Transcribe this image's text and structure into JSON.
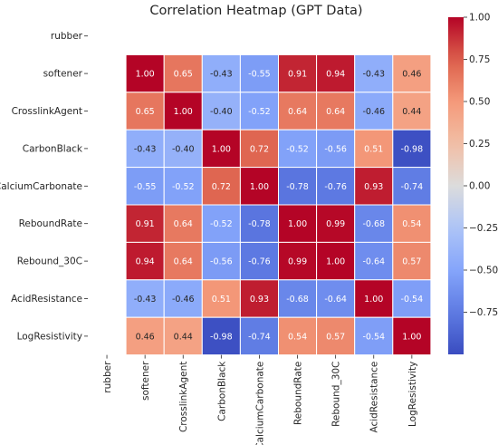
{
  "chart_data": {
    "type": "heatmap",
    "title": "Correlation Heatmap (GPT Data)",
    "row_labels": [
      "rubber",
      "softener",
      "CrosslinkAgent",
      "CarbonBlack",
      "CalciumCarbonate",
      "ReboundRate",
      "Rebound_30C",
      "AcidResistance",
      "LogResistivity"
    ],
    "col_labels": [
      "rubber",
      "softener",
      "CrosslinkAgent",
      "CarbonBlack",
      "CalciumCarbonate",
      "ReboundRate",
      "Rebound_30C",
      "AcidResistance",
      "LogResistivity"
    ],
    "values": [
      [
        null,
        null,
        null,
        null,
        null,
        null,
        null,
        null,
        null
      ],
      [
        null,
        1.0,
        0.65,
        -0.43,
        -0.55,
        0.91,
        0.94,
        -0.43,
        0.46
      ],
      [
        null,
        0.65,
        1.0,
        -0.4,
        -0.52,
        0.64,
        0.64,
        -0.46,
        0.44
      ],
      [
        null,
        -0.43,
        -0.4,
        1.0,
        0.72,
        -0.52,
        -0.56,
        0.51,
        -0.98
      ],
      [
        null,
        -0.55,
        -0.52,
        0.72,
        1.0,
        -0.78,
        -0.76,
        0.93,
        -0.74
      ],
      [
        null,
        0.91,
        0.64,
        -0.52,
        -0.78,
        1.0,
        0.99,
        -0.68,
        0.54
      ],
      [
        null,
        0.94,
        0.64,
        -0.56,
        -0.76,
        0.99,
        1.0,
        -0.64,
        0.57
      ],
      [
        null,
        -0.43,
        -0.46,
        0.51,
        0.93,
        -0.68,
        -0.64,
        1.0,
        -0.54
      ],
      [
        null,
        0.46,
        0.44,
        -0.98,
        -0.74,
        0.54,
        0.57,
        -0.54,
        1.0
      ]
    ],
    "annotations": [
      [
        null,
        null,
        null,
        null,
        null,
        null,
        null,
        null,
        null
      ],
      [
        null,
        "1.00",
        "0.65",
        "-0.43",
        "-0.55",
        "0.91",
        "0.94",
        "-0.43",
        "0.46"
      ],
      [
        null,
        "0.65",
        "1.00",
        "-0.40",
        "-0.52",
        "0.64",
        "0.64",
        "-0.46",
        "0.44"
      ],
      [
        null,
        "-0.43",
        "-0.40",
        "1.00",
        "0.72",
        "-0.52",
        "-0.56",
        "0.51",
        "-0.98"
      ],
      [
        null,
        "-0.55",
        "-0.52",
        "0.72",
        "1.00",
        "-0.78",
        "-0.76",
        "0.93",
        "-0.74"
      ],
      [
        null,
        "0.91",
        "0.64",
        "-0.52",
        "-0.78",
        "1.00",
        "0.99",
        "-0.68",
        "0.54"
      ],
      [
        null,
        "0.94",
        "0.64",
        "-0.56",
        "-0.76",
        "0.99",
        "1.00",
        "-0.64",
        "0.57"
      ],
      [
        null,
        "-0.43",
        "-0.46",
        "0.51",
        "0.93",
        "-0.68",
        "-0.64",
        "1.00",
        "-0.54"
      ],
      [
        null,
        "0.46",
        "0.44",
        "-0.98",
        "-0.74",
        "0.54",
        "0.57",
        "-0.54",
        "1.00"
      ]
    ],
    "colormap": "coolwarm",
    "vmin": -1,
    "vmax": 1,
    "colorbar_ticks": [
      1.0,
      0.75,
      0.5,
      0.25,
      0.0,
      -0.25,
      -0.5,
      -0.75
    ],
    "colorbar_tick_labels": [
      "1.00",
      "0.75",
      "0.50",
      "0.25",
      "0.00",
      "−0.25",
      "−0.50",
      "−0.75"
    ]
  }
}
